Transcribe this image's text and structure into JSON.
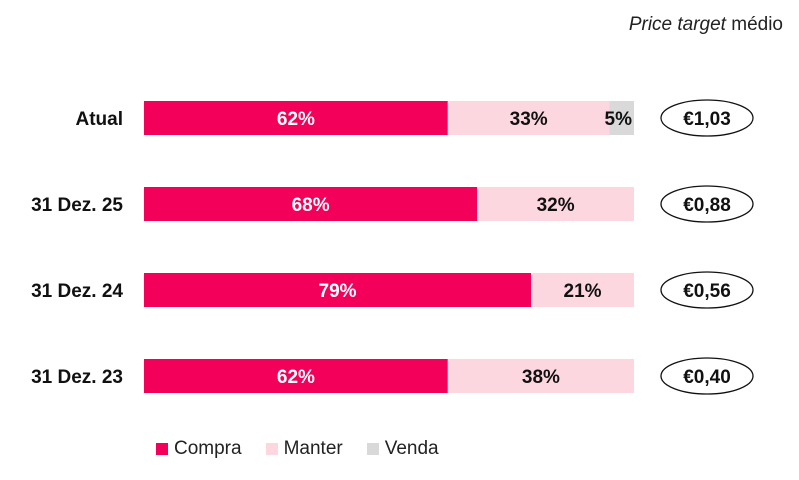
{
  "header": {
    "title_italic": "Price target",
    "title_rest": " médio"
  },
  "colors": {
    "Compra": "#f20059",
    "Manter": "#fdd7e0",
    "Venda": "#d9d9d9"
  },
  "chart_data": {
    "type": "bar",
    "orientation": "horizontal",
    "stacked": true,
    "categories": [
      "Atual",
      "31 Dez. 25",
      "31 Dez. 24",
      "31 Dez. 23"
    ],
    "series": [
      {
        "name": "Compra",
        "values": [
          62,
          68,
          79,
          62
        ]
      },
      {
        "name": "Manter",
        "values": [
          33,
          32,
          21,
          38
        ]
      },
      {
        "name": "Venda",
        "values": [
          5,
          0,
          0,
          0
        ]
      }
    ],
    "value_labels": [
      [
        "62%",
        "33%",
        "5%"
      ],
      [
        "68%",
        "32%",
        ""
      ],
      [
        "79%",
        "21%",
        ""
      ],
      [
        "62%",
        "38%",
        ""
      ]
    ],
    "price_targets": [
      "€1,03",
      "€0,88",
      "€0,56",
      "€0,40"
    ],
    "xlim": [
      0,
      100
    ],
    "legend_position": "bottom"
  }
}
